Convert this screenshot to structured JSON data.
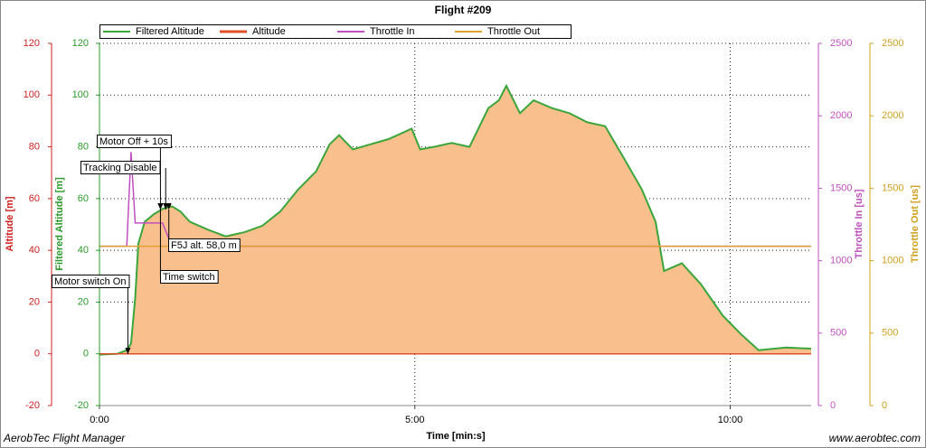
{
  "chart_data": {
    "type": "line",
    "title": "Flight #209",
    "xlabel": "Time [min:s]",
    "ylabel": "Altitude [m]",
    "ylabel_filtered": "Filtered Altitude [m]",
    "y2label": "Throttle In [us]",
    "y3label": "Throttle Out [us]",
    "footer_left": "AerobTec Flight Manager",
    "footer_right": "www.aerobtec.com",
    "x": [
      0,
      17,
      26,
      30,
      34,
      37,
      43,
      52,
      60,
      69,
      77,
      86,
      103,
      120,
      138,
      155,
      172,
      189,
      206,
      219,
      228,
      241,
      258,
      275,
      297,
      305,
      318,
      335,
      352,
      370,
      380,
      387,
      400,
      413,
      430,
      447,
      464,
      481,
      499,
      516,
      529,
      537,
      554,
      572,
      593,
      610,
      627,
      653,
      677
    ],
    "series": [
      {
        "name": "Filtered Altitude",
        "color": "#3aa63a",
        "fill": "#f9c08e",
        "values": [
          -0.3,
          0,
          1.4,
          4,
          21.6,
          42.6,
          51,
          54,
          56,
          57,
          55,
          51,
          48,
          45.4,
          47,
          49.5,
          55,
          63.5,
          70.5,
          81,
          84.5,
          79,
          81,
          83,
          87,
          79,
          80,
          81.5,
          80,
          95,
          98,
          103.6,
          93,
          98,
          95,
          93,
          89.5,
          88,
          75.5,
          63.5,
          51,
          32,
          35,
          27,
          14.7,
          7.7,
          1.4,
          2.4,
          2
        ]
      },
      {
        "name": "Altitude",
        "color": "#e0502a",
        "values": [
          0,
          0,
          0,
          0,
          0,
          0,
          0,
          0,
          0,
          0,
          0,
          0,
          0,
          0,
          0,
          0,
          0,
          0,
          0,
          0,
          0,
          0,
          0,
          0,
          0,
          0,
          0,
          0,
          0,
          0,
          0,
          0,
          0,
          0,
          0,
          0,
          0,
          0,
          0,
          0,
          0,
          0,
          0,
          0,
          0,
          0,
          0,
          0,
          0
        ]
      },
      {
        "name": "Throttle In",
        "color": "#c050c0",
        "axis": "y2",
        "values": [
          1100,
          1100,
          1100,
          1750,
          1260,
          1260,
          1260,
          1260,
          1260,
          1100,
          1100,
          1100,
          1100,
          1100,
          1100,
          1100,
          1100,
          1100,
          1100,
          1100,
          1100,
          1100,
          1100,
          1100,
          1100,
          1100,
          1100,
          1100,
          1100,
          1100,
          1100,
          1100,
          1100,
          1100,
          1100,
          1100,
          1100,
          1100,
          1100,
          1100,
          1100,
          1100,
          1100,
          1100,
          1100,
          1100,
          1100,
          1100,
          1100
        ]
      },
      {
        "name": "Throttle Out",
        "color": "#e0a030",
        "axis": "y2",
        "values": [
          1100,
          1100,
          1100,
          1100,
          1100,
          1100,
          1100,
          1100,
          1100,
          1100,
          1100,
          1100,
          1100,
          1100,
          1100,
          1100,
          1100,
          1100,
          1100,
          1100,
          1100,
          1100,
          1100,
          1100,
          1100,
          1100,
          1100,
          1100,
          1100,
          1100,
          1100,
          1100,
          1100,
          1100,
          1100,
          1100,
          1100,
          1100,
          1100,
          1100,
          1100,
          1100,
          1100,
          1100,
          1100,
          1100,
          1100,
          1100,
          1100
        ]
      }
    ],
    "annotations": [
      {
        "text": "Motor switch On",
        "x": 27
      },
      {
        "text": "Motor Off + 10s",
        "x": 58
      },
      {
        "text": "Tracking Disable",
        "x": 63
      },
      {
        "text": "F5J alt. 58,0 m",
        "x": 66
      },
      {
        "text": "Time switch",
        "x": 58
      }
    ],
    "xlim": [
      0,
      677
    ],
    "xticks": [
      {
        "value": 0,
        "label": "0:00"
      },
      {
        "value": 300,
        "label": "5:00"
      },
      {
        "value": 600,
        "label": "10:00"
      }
    ],
    "ylim": [
      -20,
      120
    ],
    "yticks": [
      -20,
      0,
      20,
      40,
      60,
      80,
      100,
      120
    ],
    "y2lim": [
      0,
      2500
    ],
    "y2ticks": [
      0,
      500,
      1000,
      1500,
      2000,
      2500
    ],
    "grid": true
  }
}
